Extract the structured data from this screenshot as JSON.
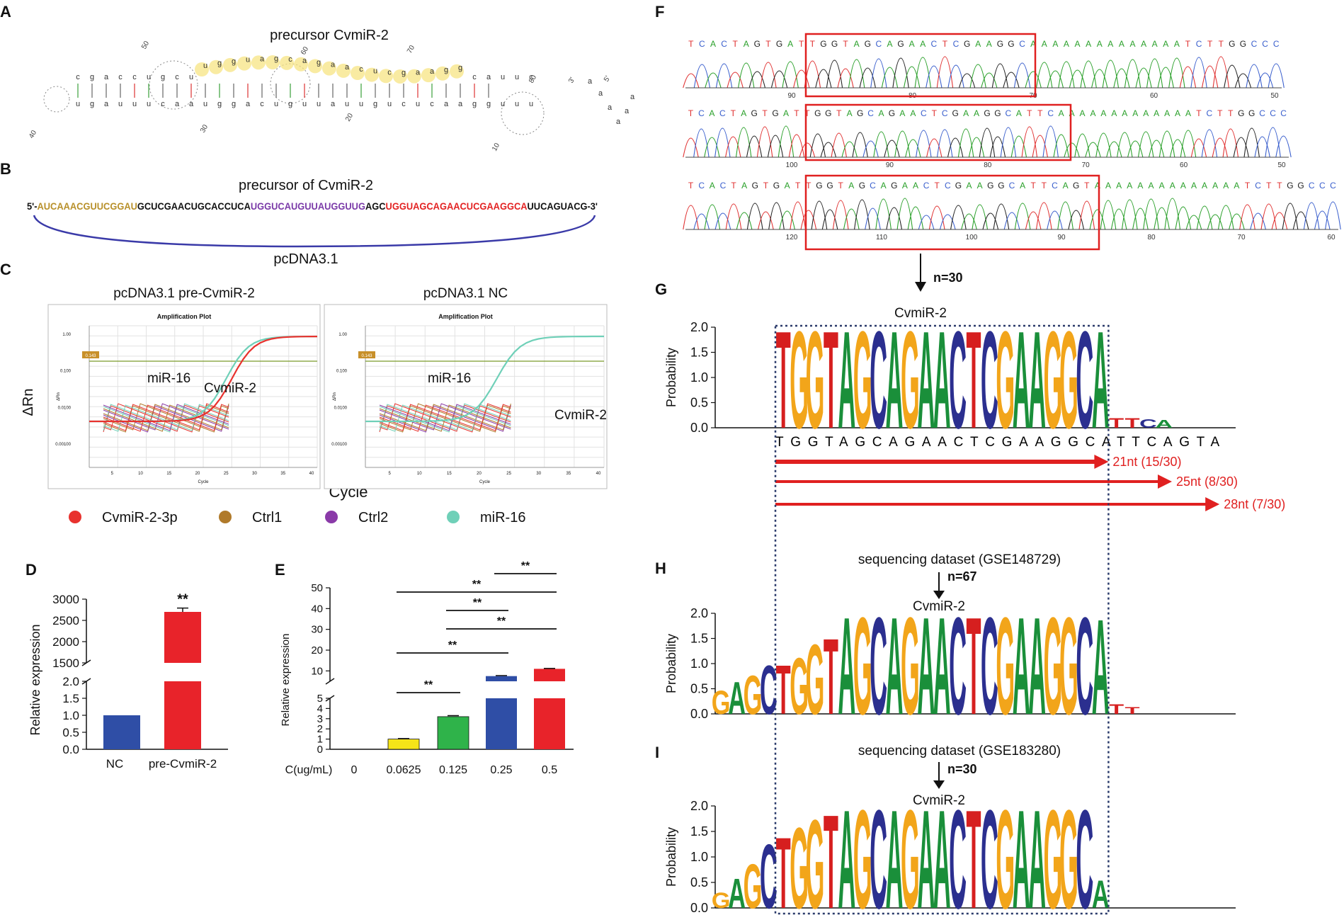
{
  "panels": {
    "A": {
      "letter": "A",
      "title": "precursor CvmiR-2",
      "structure_numbers": [
        "50",
        "60",
        "70",
        "40",
        "30",
        "20",
        "10",
        "80",
        "3'",
        "5'"
      ],
      "top_strand": [
        "c",
        "g",
        "a",
        "c",
        "c",
        "u",
        "g",
        "c",
        "u",
        "u",
        "g",
        "g",
        "u",
        "a",
        "g",
        "c",
        "a",
        "g",
        "a",
        "a",
        "c",
        "u",
        "c",
        "g",
        "a",
        "a",
        "g",
        "g",
        "c",
        "a",
        "u",
        "u",
        "c"
      ],
      "bottom_strand": [
        "u",
        "g",
        "a",
        "u",
        "u",
        "u",
        "c",
        "a",
        "a",
        "u",
        "g",
        "g",
        "a",
        "c",
        "u",
        "g",
        "u",
        "u",
        "a",
        "u",
        "u",
        "g",
        "u",
        "c",
        "u",
        "c",
        "a",
        "a",
        "g",
        "g",
        "u",
        "u",
        "u"
      ]
    },
    "B": {
      "letter": "B",
      "title": "precursor of CvmiR-2",
      "prefix": "5'-",
      "seg1": "AUCAAACGUUCGGAU",
      "seg2": "GCUCGAACUGCACCUCA",
      "seg3": "UGGUCAUGUUAUGGUUG",
      "seg4": "AGC",
      "seg5": "UGGUAGCAGAACUCGAAGGCA",
      "seg6": "UUCAGUACG-3'",
      "vector": "pcDNA3.1",
      "colors": {
        "seg1": "#b8902a",
        "seg3": "#7a3aa8",
        "seg5": "#e32222",
        "arc": "#3a3aa8"
      }
    },
    "C": {
      "letter": "C",
      "ylabel": "ΔRn",
      "xlabel": "Cycle",
      "plots": [
        {
          "title": "pcDNA3.1 pre-CvmiR-2",
          "subtitle": "Amplification Plot",
          "threshold_label": "0.143",
          "yticks": [
            "1.00",
            "0.100",
            "0.0100",
            "0.00100"
          ],
          "xticks": [
            "5",
            "10",
            "15",
            "20",
            "25",
            "30",
            "35",
            "40"
          ],
          "inner_xlabel": "Cycle",
          "inner_ylabel": "ΔRn",
          "curve_labels": [
            "miR-16",
            "CvmiR-2"
          ]
        },
        {
          "title": "pcDNA3.1 NC",
          "subtitle": "Amplification Plot",
          "threshold_label": "0.143",
          "yticks": [
            "1.00",
            "0.100",
            "0.0100",
            "0.00100"
          ],
          "xticks": [
            "5",
            "10",
            "15",
            "20",
            "25",
            "30",
            "35",
            "40"
          ],
          "inner_xlabel": "Cycle",
          "inner_ylabel": "ΔRn",
          "curve_labels": [
            "miR-16",
            "CvmiR-2"
          ]
        }
      ],
      "legend": [
        {
          "label": "CvmiR-2-3p",
          "color": "#e8322e"
        },
        {
          "label": "Ctrl1",
          "color": "#b07a2a"
        },
        {
          "label": "Ctrl2",
          "color": "#8a3aa8"
        },
        {
          "label": "miR-16",
          "color": "#6fd0b8"
        }
      ]
    },
    "D": {
      "letter": "D",
      "chart_data": {
        "type": "bar",
        "categories": [
          "NC",
          "pre-CvmiR-2"
        ],
        "values": [
          1.0,
          2700
        ],
        "error": [
          0,
          90
        ],
        "colors": [
          "#2f4ea6",
          "#e8232a"
        ],
        "ylabel": "Relative expression",
        "yticks_lower": [
          "0.0",
          "0.5",
          "1.0",
          "1.5",
          "2.0"
        ],
        "yticks_upper": [
          "1500",
          "2000",
          "2500",
          "3000"
        ],
        "significance": "**"
      }
    },
    "E": {
      "letter": "E",
      "chart_data": {
        "type": "bar",
        "xlabel": "C(ug/mL)",
        "categories": [
          "0",
          "0.0625",
          "0.125",
          "0.25",
          "0.5"
        ],
        "values": [
          0,
          1.0,
          3.2,
          7.5,
          11
        ],
        "error": [
          0,
          0.05,
          0.1,
          0.25,
          0.2
        ],
        "colors": [
          "#ffffff",
          "#f5e418",
          "#2fb34a",
          "#2f4ea6",
          "#e8232a"
        ],
        "ylabel": "Relative expression",
        "yticks_lower": [
          "0",
          "1",
          "2",
          "3",
          "4",
          "5"
        ],
        "yticks_upper": [
          "10",
          "20",
          "30",
          "40",
          "50"
        ],
        "comparisons": [
          {
            "from": "0.0625",
            "to": "0.125",
            "label": "**"
          },
          {
            "from": "0.0625",
            "to": "0.25",
            "label": "**"
          },
          {
            "from": "0.0625",
            "to": "0.5",
            "label": "**"
          },
          {
            "from": "0.125",
            "to": "0.25",
            "label": "**"
          },
          {
            "from": "0.125",
            "to": "0.5",
            "label": "**"
          },
          {
            "from": "0.25",
            "to": "0.5",
            "label": "**"
          }
        ]
      }
    },
    "F": {
      "letter": "F",
      "traces": [
        {
          "sequence": "TCACTAGTGATTGGTAGCAGAACTCGAAGGCAAAAAAAAAAAAAATCTTGGCCC",
          "positions": [
            "90",
            "80",
            "70",
            "60",
            "50"
          ]
        },
        {
          "sequence": "TCACTAGTGATTGGTAGCAGAACTCGAAGGCATTCAAAAAAAAAAAAATCTTGGCCC",
          "positions": [
            "100",
            "90",
            "80",
            "70",
            "60",
            "50"
          ]
        },
        {
          "sequence": "TCACTAGTGATTGGTAGCAGAACTCGAAGGCATTCAGTAAAAAAAAAAAAAATCTTGGCCC",
          "positions": [
            "120",
            "110",
            "100",
            "90",
            "80",
            "70",
            "60"
          ]
        }
      ],
      "arrow_label": "n=30"
    },
    "G": {
      "letter": "G",
      "title": "CvmiR-2",
      "ylabel": "Probability",
      "yticks": [
        "0.0",
        "0.5",
        "1.0",
        "1.5",
        "2.0"
      ],
      "logo": "TGGTAGCAGAACTCGAAGGCA",
      "tail": "TTCA",
      "consensus": "TGGTAGCAGAACTCGAAGGCATTCAGTA",
      "lengths": [
        {
          "label": "21nt (15/30)",
          "nt": 21
        },
        {
          "label": "25nt (8/30)",
          "nt": 25
        },
        {
          "label": "28nt (7/30)",
          "nt": 28
        }
      ]
    },
    "H": {
      "letter": "H",
      "dataset": "sequencing dataset (GSE148729)",
      "n_label": "n=67",
      "title": "CvmiR-2",
      "ylabel": "Probability",
      "yticks": [
        "0.0",
        "0.5",
        "1.0",
        "1.5",
        "2.0"
      ],
      "prefix": "GAGC",
      "logo": "TGGTAGCAGAACTCGAAGGCA",
      "tail": "TT"
    },
    "I": {
      "letter": "I",
      "dataset": "sequencing dataset (GSE183280)",
      "n_label": "n=30",
      "title": "CvmiR-2",
      "ylabel": "Probability",
      "yticks": [
        "0.0",
        "0.5",
        "1.0",
        "1.5",
        "2.0"
      ],
      "prefix": "GAGC",
      "logo": "TGGTAGCAGAACTCGAAGGCA",
      "tail": ""
    }
  },
  "base_colors": {
    "A": "#1a8f3a",
    "C": "#2b2f8f",
    "G": "#f2a51a",
    "T": "#d61f1f",
    "U": "#d61f1f"
  },
  "trace_base_colors": {
    "A": "#2aa02a",
    "C": "#3a5fcd",
    "G": "#222222",
    "T": "#e03030"
  }
}
